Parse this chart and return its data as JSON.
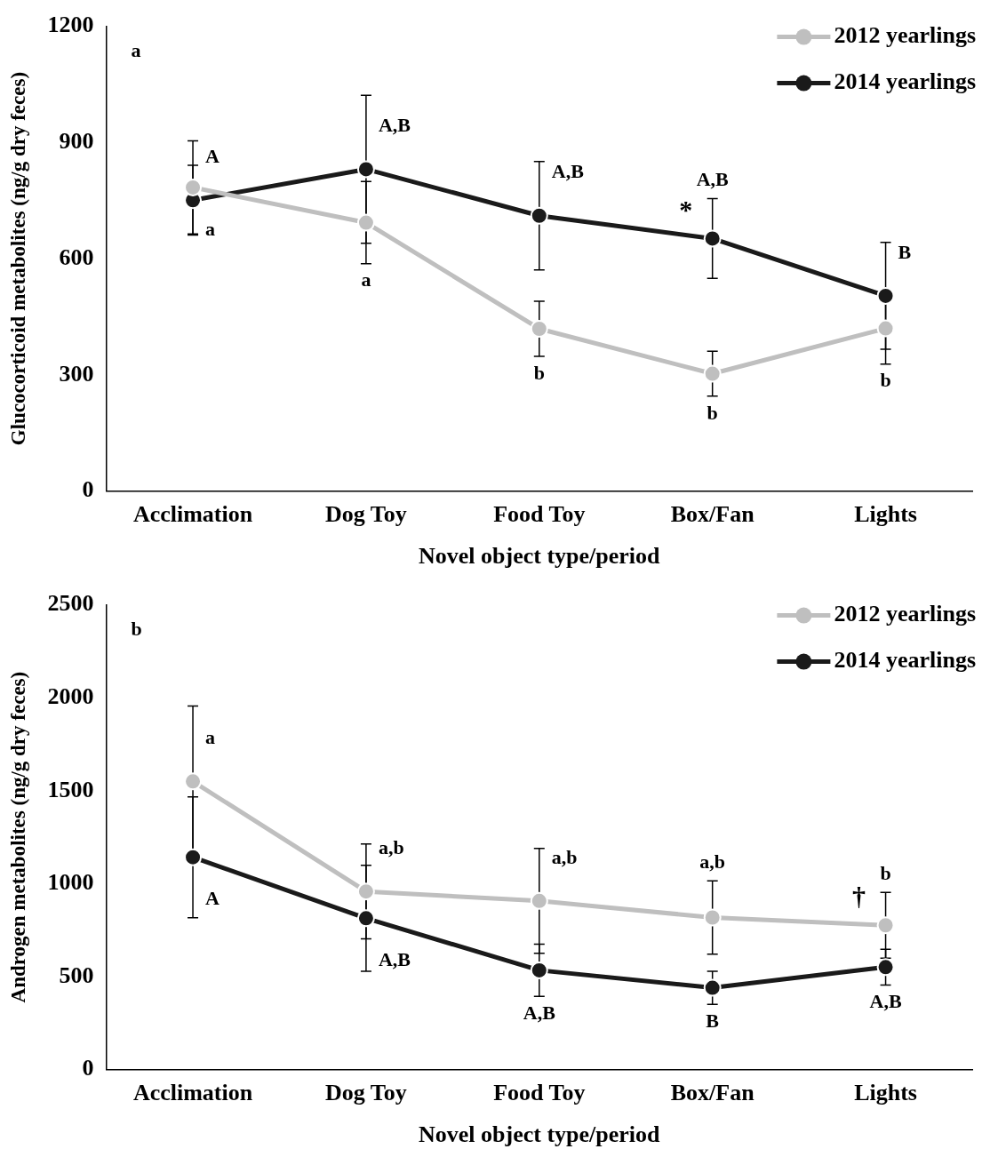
{
  "chart_data": [
    {
      "type": "line",
      "xlabel": "Novel object type/period",
      "ylabel": "Glucocorticoid metabolites (ng/g dry feces)",
      "categories": [
        "Acclimation",
        "Dog Toy",
        "Food Toy",
        "Box/Fan",
        "Lights"
      ],
      "series": [
        {
          "name": "2012 yearlings",
          "color": "#bfbfbf",
          "values": [
            784,
            693,
            419,
            303,
            420
          ],
          "errors": [
            120,
            106,
            71,
            58,
            92
          ],
          "value_labels": [
            "a",
            "a",
            "b",
            "b",
            "b"
          ]
        },
        {
          "name": "2014 yearlings",
          "color": "#1a1a1a",
          "values": [
            751,
            831,
            711,
            652,
            504
          ],
          "errors": [
            90,
            191,
            140,
            103,
            138
          ],
          "value_labels": [
            "A",
            "A,B",
            "A,B",
            "A,B",
            "B"
          ]
        }
      ],
      "ylim": [
        0,
        1200
      ],
      "yticks": [
        0,
        300,
        600,
        900,
        1200
      ],
      "grid": false,
      "legend": "top right",
      "marker": "circle",
      "line_style": "solid",
      "annotations": [
        "a",
        {
          "text": "*",
          "x": "Box/Fan",
          "y": 652
        }
      ]
    },
    {
      "type": "line",
      "xlabel": "Novel object type/period",
      "ylabel": "Androgen metabolites (ng/g dry feces)",
      "categories": [
        "Acclimation",
        "Dog Toy",
        "Food Toy",
        "Box/Fan",
        "Lights"
      ],
      "series": [
        {
          "name": "2012 yearlings",
          "color": "#bfbfbf",
          "values": [
            1550,
            958,
            907,
            818,
            776
          ],
          "errors": [
            406,
            255,
            282,
            197,
            177
          ],
          "value_labels": [
            "a",
            "a,b",
            "a,b",
            "a,b",
            "b"
          ]
        },
        {
          "name": "2014 yearlings",
          "color": "#1a1a1a",
          "values": [
            1142,
            814,
            534,
            440,
            551
          ],
          "errors": [
            325,
            285,
            140,
            89,
            96
          ],
          "value_labels": [
            "A",
            "A,B",
            "A,B",
            "B",
            "A,B"
          ]
        }
      ],
      "ylim": [
        0,
        2500
      ],
      "yticks": [
        0,
        500,
        1000,
        1500,
        2000,
        2500
      ],
      "grid": false,
      "legend": "top right",
      "marker": "circle",
      "line_style": "solid",
      "annotations": [
        "b",
        {
          "text": "†",
          "x": "Lights",
          "y": 776
        }
      ]
    }
  ]
}
